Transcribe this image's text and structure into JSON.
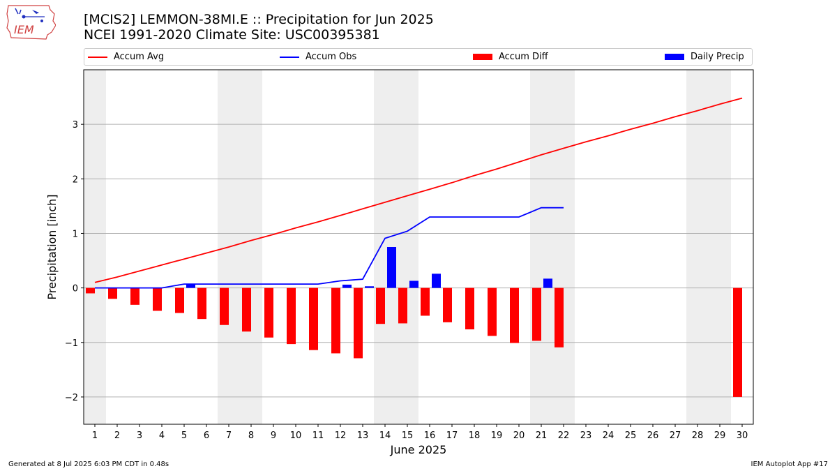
{
  "header": {
    "title_line1": "[MCIS2] LEMMON-38MI.E :: Precipitation for Jun 2025",
    "title_line2": "NCEI 1991-2020 Climate Site: USC00395381"
  },
  "logo": {
    "text": "IEM",
    "icon": "iem-iowa-logo"
  },
  "footer": {
    "left": "Generated at 8 Jul 2025 6:03 PM CDT in 0.48s",
    "right": "IEM Autoplot App #17"
  },
  "chart_data": {
    "type": "bar",
    "xlabel": "June 2025",
    "ylabel": "Precipitation [inch]",
    "ylim": [
      -2.5,
      4.0
    ],
    "yticks": [
      -2,
      -1,
      0,
      1,
      2,
      3
    ],
    "ytick_labels": [
      "−2",
      "−1",
      "0",
      "1",
      "2",
      "3"
    ],
    "x": [
      1,
      2,
      3,
      4,
      5,
      6,
      7,
      8,
      9,
      10,
      11,
      12,
      13,
      14,
      15,
      16,
      17,
      18,
      19,
      20,
      21,
      22,
      23,
      24,
      25,
      26,
      27,
      28,
      29,
      30
    ],
    "xtick_labels": [
      "1",
      "2",
      "3",
      "4",
      "5",
      "6",
      "7",
      "8",
      "9",
      "10",
      "11",
      "12",
      "13",
      "14",
      "15",
      "16",
      "17",
      "18",
      "19",
      "20",
      "21",
      "22",
      "23",
      "24",
      "25",
      "26",
      "27",
      "28",
      "29",
      "30"
    ],
    "grid": "horizontal",
    "legend_position": "top",
    "weekend_shading_days": [
      1,
      7,
      8,
      14,
      15,
      21,
      22,
      28,
      29
    ],
    "series": [
      {
        "name": "Accum Avg",
        "kind": "line",
        "color": "#ff0000",
        "values": [
          0.1,
          0.2,
          0.31,
          0.42,
          0.53,
          0.64,
          0.75,
          0.87,
          0.98,
          1.1,
          1.21,
          1.33,
          1.45,
          1.57,
          1.69,
          1.81,
          1.93,
          2.06,
          2.18,
          2.31,
          2.44,
          2.56,
          2.68,
          2.79,
          2.91,
          3.02,
          3.14,
          3.25,
          3.37,
          3.48
        ]
      },
      {
        "name": "Accum Obs",
        "kind": "line",
        "color": "#0000ff",
        "values": [
          0.0,
          0.0,
          0.0,
          0.0,
          0.07,
          0.07,
          0.07,
          0.07,
          0.07,
          0.07,
          0.07,
          0.13,
          0.16,
          0.91,
          1.04,
          1.3,
          1.3,
          1.3,
          1.3,
          1.3,
          1.47,
          1.47,
          null,
          null,
          null,
          null,
          null,
          null,
          null,
          null
        ]
      },
      {
        "name": "Accum Diff",
        "kind": "bar",
        "color": "#ff0000",
        "values": [
          -0.1,
          -0.2,
          -0.31,
          -0.42,
          -0.46,
          -0.57,
          -0.68,
          -0.8,
          -0.91,
          -1.03,
          -1.14,
          -1.2,
          -1.29,
          -0.66,
          -0.65,
          -0.51,
          -0.63,
          -0.76,
          -0.88,
          -1.01,
          -0.97,
          -1.09,
          null,
          null,
          null,
          null,
          null,
          null,
          null,
          -2.0
        ]
      },
      {
        "name": "Daily Precip",
        "kind": "bar",
        "color": "#0000ff",
        "values": [
          0,
          0,
          0,
          0,
          0.07,
          0,
          0,
          0,
          0,
          0,
          0,
          0.06,
          0.03,
          0.75,
          0.13,
          0.26,
          0,
          0,
          0,
          0,
          0.17,
          0,
          null,
          null,
          null,
          null,
          null,
          null,
          null,
          null
        ]
      }
    ]
  }
}
